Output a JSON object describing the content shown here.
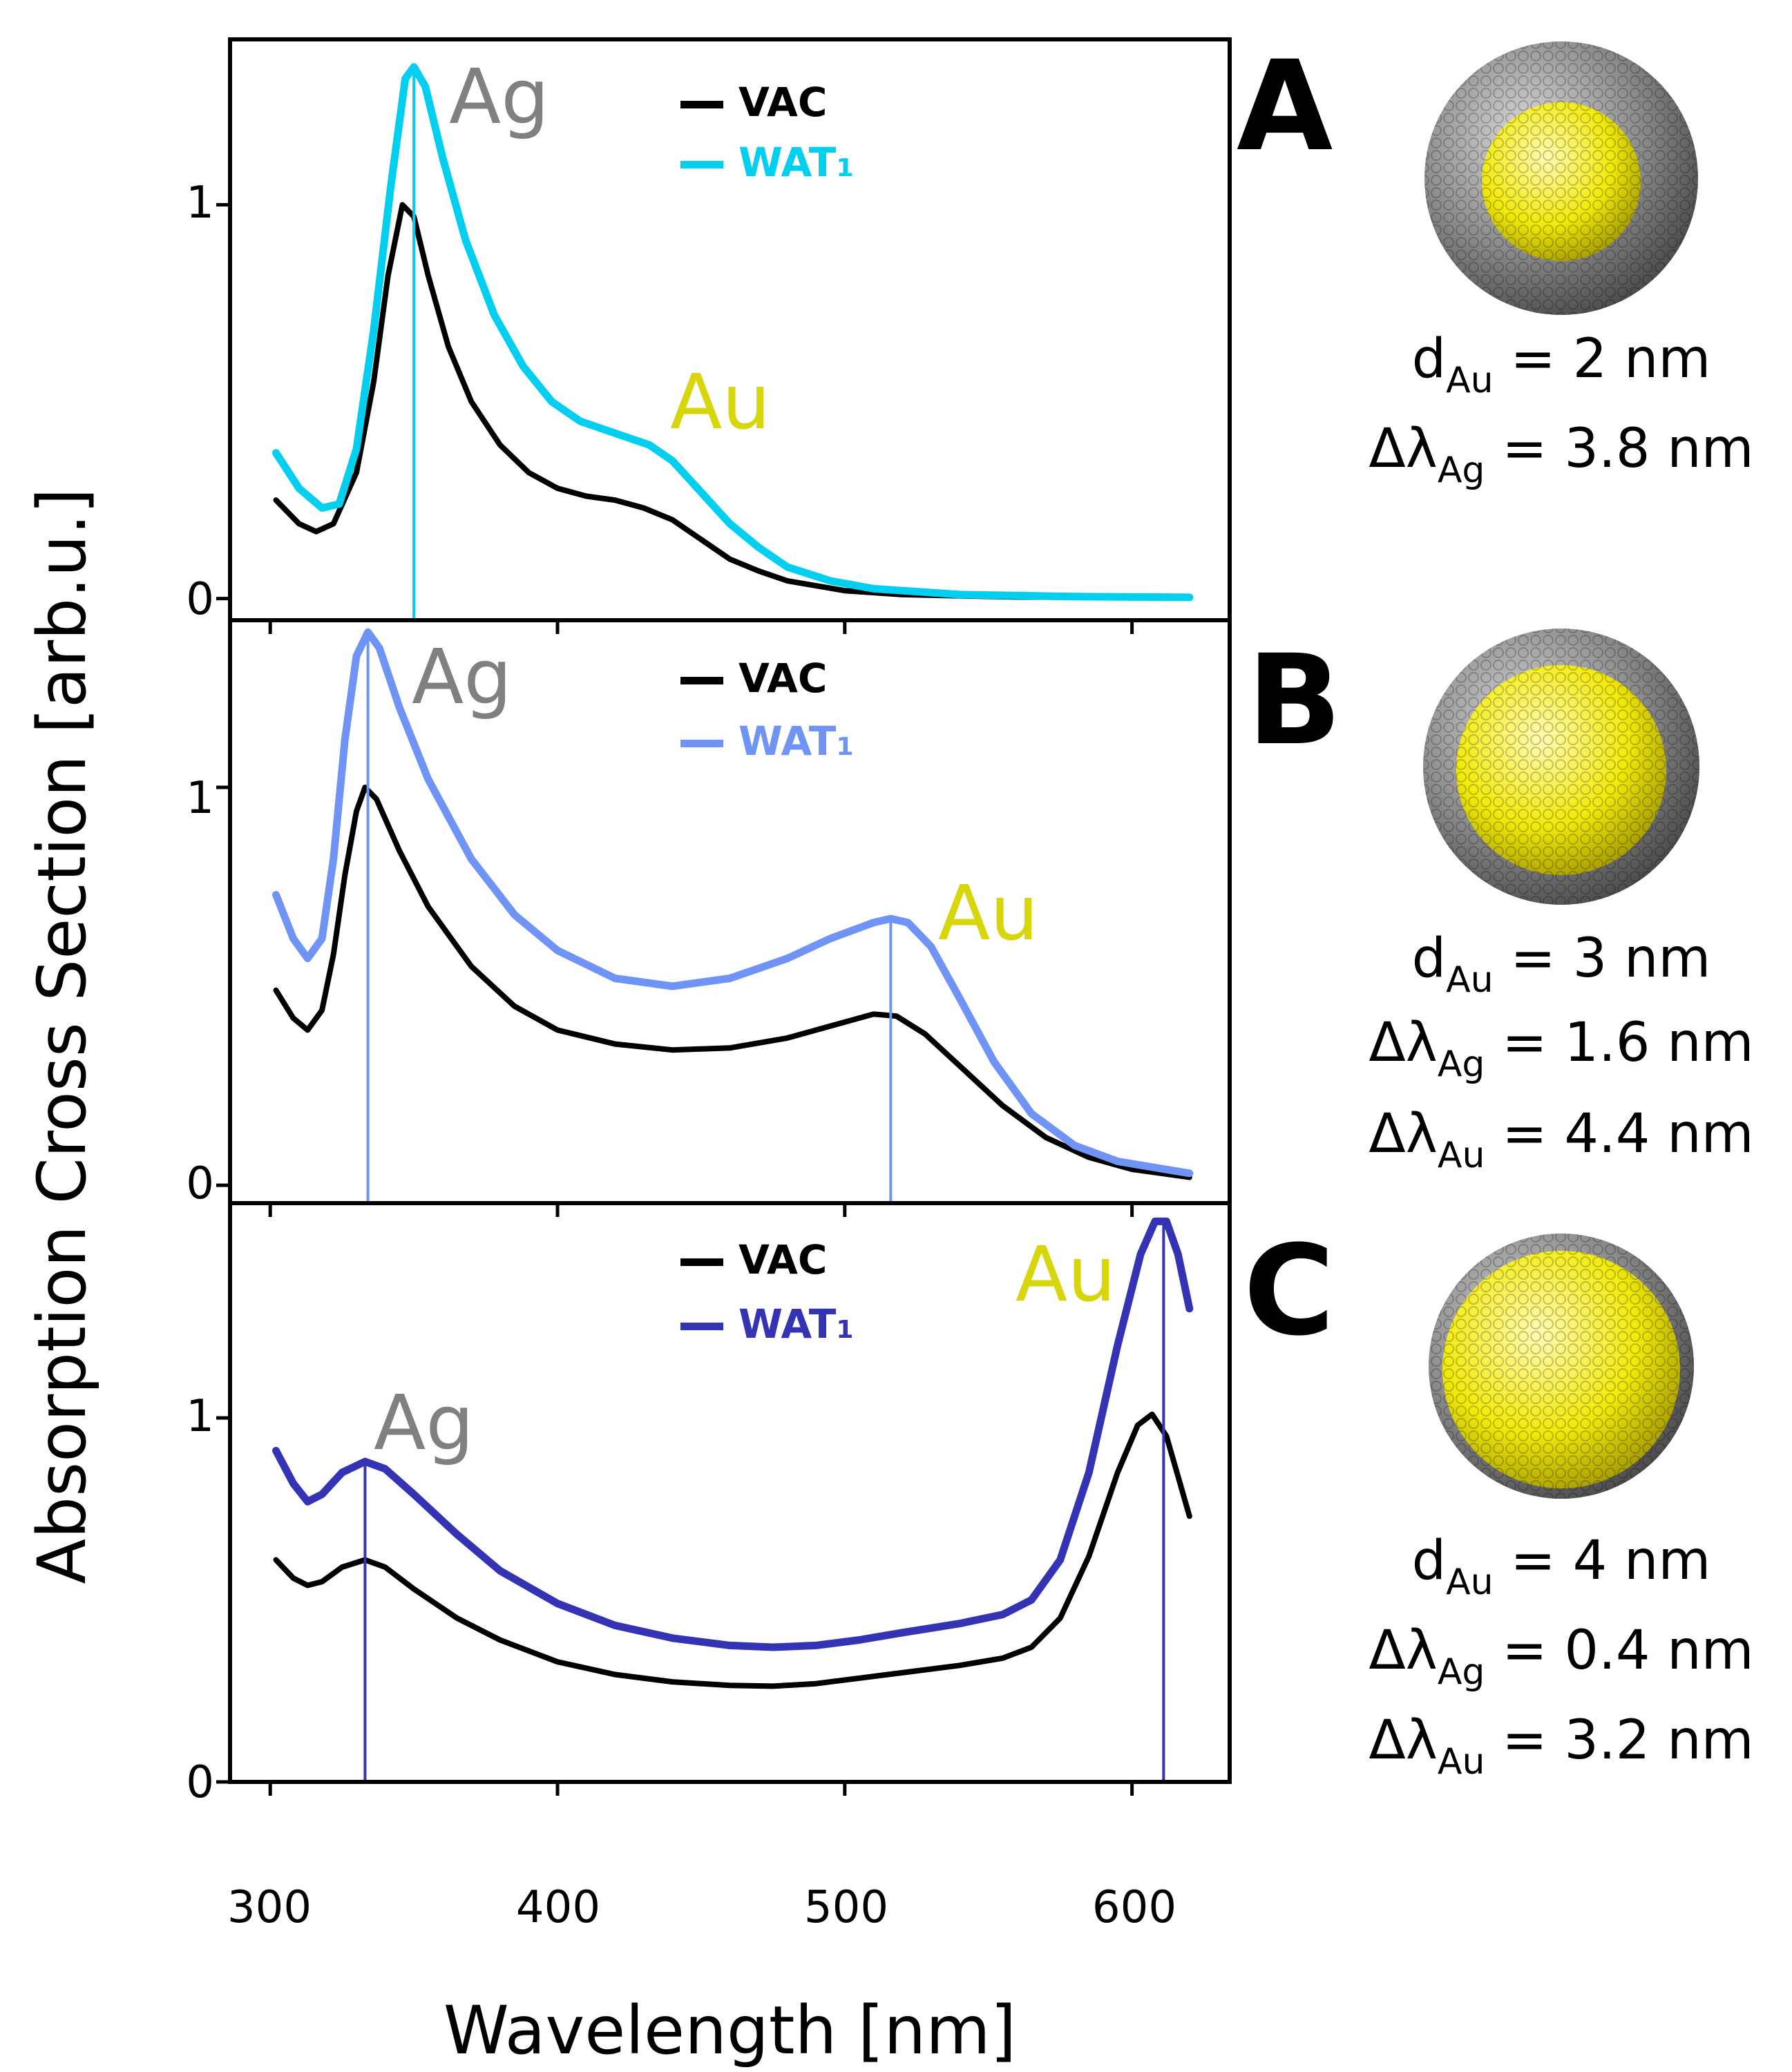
{
  "figure": {
    "ylabel": "Absorption Cross Section [arb.u.]",
    "xlabel": "Wavelength [nm]"
  },
  "chart_data": [
    {
      "panel": "A",
      "type": "line",
      "xlim": [
        286,
        634
      ],
      "ylim": [
        -0.055,
        1.42
      ],
      "xticks": [
        300,
        400,
        500,
        600
      ],
      "xtick_labels": [
        "300",
        "400",
        "500",
        "600"
      ],
      "yticks": [
        0,
        1
      ],
      "ytick_labels": [
        "0",
        "1"
      ],
      "legend": {
        "position": "top-center",
        "entries": [
          "VAC",
          "WAT",
          "1"
        ]
      },
      "series": [
        {
          "name": "VAC",
          "color": "#000000",
          "points": [
            [
              302,
              0.25
            ],
            [
              310,
              0.19
            ],
            [
              316,
              0.17
            ],
            [
              322,
              0.19
            ],
            [
              330,
              0.32
            ],
            [
              336,
              0.55
            ],
            [
              341,
              0.82
            ],
            [
              346,
              1.0
            ],
            [
              350,
              0.97
            ],
            [
              355,
              0.82
            ],
            [
              362,
              0.64
            ],
            [
              370,
              0.5
            ],
            [
              380,
              0.39
            ],
            [
              390,
              0.32
            ],
            [
              400,
              0.28
            ],
            [
              410,
              0.26
            ],
            [
              420,
              0.25
            ],
            [
              430,
              0.23
            ],
            [
              440,
              0.2
            ],
            [
              450,
              0.15
            ],
            [
              460,
              0.1
            ],
            [
              470,
              0.07
            ],
            [
              480,
              0.045
            ],
            [
              500,
              0.02
            ],
            [
              520,
              0.01
            ],
            [
              560,
              0.004
            ],
            [
              620,
              0.002
            ]
          ]
        },
        {
          "name": "WAT",
          "color": "#00cfef",
          "points": [
            [
              302,
              0.37
            ],
            [
              310,
              0.28
            ],
            [
              318,
              0.23
            ],
            [
              324,
              0.24
            ],
            [
              330,
              0.38
            ],
            [
              336,
              0.68
            ],
            [
              342,
              1.05
            ],
            [
              347,
              1.32
            ],
            [
              350,
              1.35
            ],
            [
              354,
              1.3
            ],
            [
              360,
              1.12
            ],
            [
              368,
              0.91
            ],
            [
              378,
              0.72
            ],
            [
              388,
              0.59
            ],
            [
              398,
              0.5
            ],
            [
              408,
              0.45
            ],
            [
              420,
              0.42
            ],
            [
              432,
              0.39
            ],
            [
              440,
              0.35
            ],
            [
              450,
              0.27
            ],
            [
              460,
              0.19
            ],
            [
              470,
              0.13
            ],
            [
              480,
              0.08
            ],
            [
              495,
              0.045
            ],
            [
              510,
              0.025
            ],
            [
              540,
              0.01
            ],
            [
              580,
              0.005
            ],
            [
              620,
              0.003
            ]
          ]
        }
      ],
      "peaks": [
        {
          "name": "Ag",
          "x": 350,
          "color": "#808080"
        },
        {
          "name": "Au",
          "x": null,
          "color": "#d6d60a"
        }
      ]
    },
    {
      "panel": "B",
      "type": "line",
      "xlim": [
        286,
        634
      ],
      "ylim": [
        -0.045,
        1.42
      ],
      "xticks": [
        300,
        400,
        500,
        600
      ],
      "xtick_labels": [
        "300",
        "400",
        "500",
        "600"
      ],
      "yticks": [
        0,
        1
      ],
      "ytick_labels": [
        "0",
        "1"
      ],
      "legend": {
        "position": "top-center",
        "entries": [
          "VAC",
          "WAT",
          "1"
        ]
      },
      "series": [
        {
          "name": "VAC",
          "color": "#000000",
          "points": [
            [
              302,
              0.49
            ],
            [
              308,
              0.42
            ],
            [
              313,
              0.39
            ],
            [
              318,
              0.44
            ],
            [
              322,
              0.58
            ],
            [
              326,
              0.78
            ],
            [
              330,
              0.94
            ],
            [
              333,
              1.0
            ],
            [
              337,
              0.97
            ],
            [
              345,
              0.84
            ],
            [
              355,
              0.7
            ],
            [
              370,
              0.55
            ],
            [
              385,
              0.45
            ],
            [
              400,
              0.39
            ],
            [
              420,
              0.355
            ],
            [
              440,
              0.34
            ],
            [
              460,
              0.345
            ],
            [
              480,
              0.37
            ],
            [
              495,
              0.4
            ],
            [
              510,
              0.43
            ],
            [
              518,
              0.425
            ],
            [
              528,
              0.38
            ],
            [
              540,
              0.3
            ],
            [
              555,
              0.2
            ],
            [
              570,
              0.12
            ],
            [
              585,
              0.07
            ],
            [
              600,
              0.04
            ],
            [
              620,
              0.02
            ]
          ]
        },
        {
          "name": "WAT",
          "color": "#7094f5",
          "points": [
            [
              302,
              0.73
            ],
            [
              308,
              0.62
            ],
            [
              313,
              0.57
            ],
            [
              318,
              0.62
            ],
            [
              322,
              0.82
            ],
            [
              326,
              1.12
            ],
            [
              330,
              1.33
            ],
            [
              334,
              1.39
            ],
            [
              338,
              1.35
            ],
            [
              345,
              1.2
            ],
            [
              355,
              1.02
            ],
            [
              370,
              0.82
            ],
            [
              385,
              0.68
            ],
            [
              400,
              0.59
            ],
            [
              420,
              0.52
            ],
            [
              440,
              0.5
            ],
            [
              460,
              0.52
            ],
            [
              480,
              0.57
            ],
            [
              495,
              0.62
            ],
            [
              510,
              0.66
            ],
            [
              516,
              0.67
            ],
            [
              522,
              0.66
            ],
            [
              530,
              0.6
            ],
            [
              540,
              0.47
            ],
            [
              552,
              0.31
            ],
            [
              565,
              0.18
            ],
            [
              580,
              0.1
            ],
            [
              595,
              0.06
            ],
            [
              620,
              0.03
            ]
          ]
        }
      ],
      "peaks": [
        {
          "name": "Ag",
          "x": 334,
          "color": "#808080"
        },
        {
          "name": "Au",
          "x": 516,
          "color": "#d6d60a"
        }
      ]
    },
    {
      "panel": "C",
      "type": "line",
      "xlim": [
        286,
        634
      ],
      "ylim": [
        0,
        1.59
      ],
      "xticks": [
        300,
        400,
        500,
        600
      ],
      "xtick_labels": [
        "300",
        "400",
        "500",
        "600"
      ],
      "yticks": [
        0,
        1
      ],
      "ytick_labels": [
        "0",
        "1"
      ],
      "legend": {
        "position": "top-center",
        "entries": [
          "VAC",
          "WAT",
          "1"
        ]
      },
      "series": [
        {
          "name": "VAC",
          "color": "#000000",
          "points": [
            [
              302,
              0.61
            ],
            [
              308,
              0.56
            ],
            [
              313,
              0.54
            ],
            [
              318,
              0.55
            ],
            [
              325,
              0.59
            ],
            [
              333,
              0.61
            ],
            [
              340,
              0.59
            ],
            [
              350,
              0.53
            ],
            [
              365,
              0.45
            ],
            [
              380,
              0.39
            ],
            [
              400,
              0.33
            ],
            [
              420,
              0.295
            ],
            [
              440,
              0.275
            ],
            [
              460,
              0.265
            ],
            [
              475,
              0.263
            ],
            [
              490,
              0.27
            ],
            [
              505,
              0.285
            ],
            [
              520,
              0.3
            ],
            [
              540,
              0.32
            ],
            [
              555,
              0.34
            ],
            [
              565,
              0.37
            ],
            [
              575,
              0.45
            ],
            [
              585,
              0.62
            ],
            [
              595,
              0.85
            ],
            [
              602,
              0.98
            ],
            [
              607,
              1.01
            ],
            [
              612,
              0.95
            ],
            [
              616,
              0.84
            ],
            [
              620,
              0.73
            ]
          ]
        },
        {
          "name": "WAT",
          "color": "#3333b3",
          "points": [
            [
              302,
              0.91
            ],
            [
              308,
              0.82
            ],
            [
              313,
              0.77
            ],
            [
              318,
              0.79
            ],
            [
              325,
              0.85
            ],
            [
              333,
              0.88
            ],
            [
              340,
              0.86
            ],
            [
              350,
              0.79
            ],
            [
              365,
              0.68
            ],
            [
              380,
              0.58
            ],
            [
              400,
              0.49
            ],
            [
              420,
              0.43
            ],
            [
              440,
              0.395
            ],
            [
              460,
              0.375
            ],
            [
              475,
              0.37
            ],
            [
              490,
              0.375
            ],
            [
              505,
              0.39
            ],
            [
              520,
              0.41
            ],
            [
              540,
              0.435
            ],
            [
              555,
              0.46
            ],
            [
              565,
              0.5
            ],
            [
              575,
              0.61
            ],
            [
              585,
              0.85
            ],
            [
              595,
              1.2
            ],
            [
              603,
              1.45
            ],
            [
              608,
              1.54
            ],
            [
              612,
              1.54
            ],
            [
              616,
              1.45
            ],
            [
              620,
              1.3
            ]
          ]
        }
      ],
      "peaks": [
        {
          "name": "Ag",
          "x": 333,
          "color": "#808080"
        },
        {
          "name": "Au",
          "x": 611,
          "color": "#d6d60a"
        }
      ]
    }
  ],
  "panels": [
    {
      "letter": "A",
      "d_label": "d",
      "d_sub": "Au",
      "d_value": "= 2 nm",
      "shifts": [
        {
          "label": "Δλ",
          "sub": "Ag",
          "value": "= 3.8 nm"
        }
      ]
    },
    {
      "letter": "B",
      "d_label": "d",
      "d_sub": "Au",
      "d_value": "= 3 nm",
      "shifts": [
        {
          "label": "Δλ",
          "sub": "Ag",
          "value": "= 1.6 nm"
        },
        {
          "label": "Δλ",
          "sub": "Au",
          "value": "= 4.4 nm"
        }
      ]
    },
    {
      "letter": "C",
      "d_label": "d",
      "d_sub": "Au",
      "d_value": "= 4 nm",
      "shifts": [
        {
          "label": "Δλ",
          "sub": "Ag",
          "value": "= 0.4 nm"
        },
        {
          "label": "Δλ",
          "sub": "Au",
          "value": "= 3.2 nm"
        }
      ]
    }
  ],
  "colors": {
    "shell": "#8a8a8a",
    "core": "#f2ea0a",
    "ag_label": "#808080",
    "au_label": "#d6d60a"
  }
}
